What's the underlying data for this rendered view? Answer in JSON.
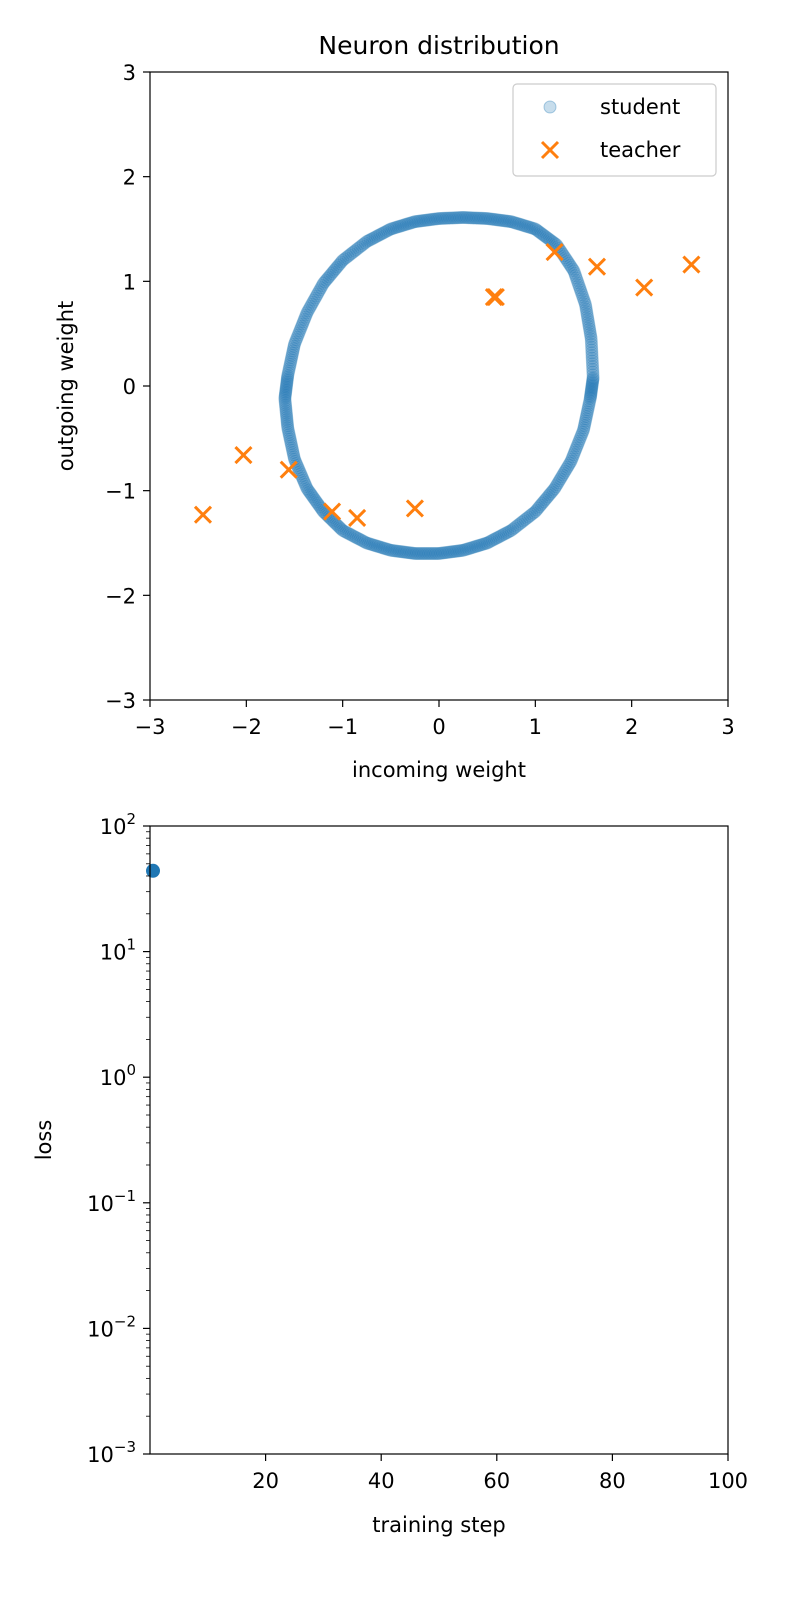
{
  "chart_data": [
    {
      "type": "scatter",
      "title": "Neuron distribution",
      "xlabel": "incoming weight",
      "ylabel": "outgoing weight",
      "xlim": [
        -3,
        3
      ],
      "ylim": [
        -3,
        3
      ],
      "xticks": [
        -3,
        -2,
        -1,
        0,
        1,
        2,
        3
      ],
      "yticks": [
        -3,
        -2,
        -1,
        0,
        1,
        2,
        3
      ],
      "xtick_labels": [
        "−3",
        "−2",
        "−1",
        "0",
        "1",
        "2",
        "3"
      ],
      "ytick_labels": [
        "−3",
        "−2",
        "−1",
        "0",
        "1",
        "2",
        "3"
      ],
      "grid": false,
      "legend_position": "top-right",
      "series": [
        {
          "name": "student",
          "marker": "circle",
          "color": "#1f77b4",
          "shape": "ring of points centred near (0, 0), radius about 1.6",
          "x": [
            1.6,
            1.58,
            1.52,
            1.4,
            1.22,
            1.0,
            0.75,
            0.5,
            0.25,
            0.0,
            -0.25,
            -0.5,
            -0.75,
            -1.0,
            -1.2,
            -1.37,
            -1.5,
            -1.57,
            -1.6,
            -1.57,
            -1.5,
            -1.37,
            -1.2,
            -1.0,
            -0.75,
            -0.5,
            -0.25,
            0.0,
            0.25,
            0.5,
            0.75,
            1.0,
            1.2,
            1.37,
            1.5,
            1.57,
            1.6
          ],
          "y": [
            0.08,
            0.45,
            0.78,
            1.1,
            1.35,
            1.5,
            1.57,
            1.6,
            1.61,
            1.6,
            1.57,
            1.5,
            1.38,
            1.2,
            0.98,
            0.7,
            0.4,
            0.1,
            -0.12,
            -0.4,
            -0.7,
            -0.98,
            -1.2,
            -1.38,
            -1.5,
            -1.57,
            -1.6,
            -1.6,
            -1.57,
            -1.5,
            -1.38,
            -1.2,
            -0.98,
            -0.72,
            -0.42,
            -0.12,
            0.08
          ]
        },
        {
          "name": "teacher",
          "marker": "x",
          "color": "#ff7f0e",
          "x": [
            -2.45,
            -2.03,
            -1.56,
            -1.11,
            -0.85,
            -0.25,
            0.57,
            0.59,
            1.2,
            1.64,
            2.13,
            2.62
          ],
          "y": [
            -1.23,
            -0.66,
            -0.8,
            -1.2,
            -1.26,
            -1.17,
            0.85,
            0.85,
            1.28,
            1.14,
            0.94,
            1.16
          ]
        }
      ]
    },
    {
      "type": "scatter",
      "title": "",
      "xlabel": "training step",
      "ylabel": "loss",
      "xlim": [
        0,
        100
      ],
      "ylim": [
        0.001,
        100
      ],
      "yscale": "log",
      "xticks": [
        20,
        40,
        60,
        80,
        100
      ],
      "xtick_labels": [
        "20",
        "40",
        "60",
        "80",
        "100"
      ],
      "yticks": [
        0.001,
        0.01,
        0.1,
        1,
        10,
        100
      ],
      "ytick_labels": [
        {
          "base": "10",
          "exp": "−3"
        },
        {
          "base": "10",
          "exp": "−2"
        },
        {
          "base": "10",
          "exp": "−1"
        },
        {
          "base": "10",
          "exp": "0"
        },
        {
          "base": "10",
          "exp": "1"
        },
        {
          "base": "10",
          "exp": "2"
        }
      ],
      "grid": false,
      "series": [
        {
          "marker": "circle",
          "color": "#1f77b4",
          "x": [
            0
          ],
          "y": [
            44
          ]
        }
      ]
    }
  ]
}
